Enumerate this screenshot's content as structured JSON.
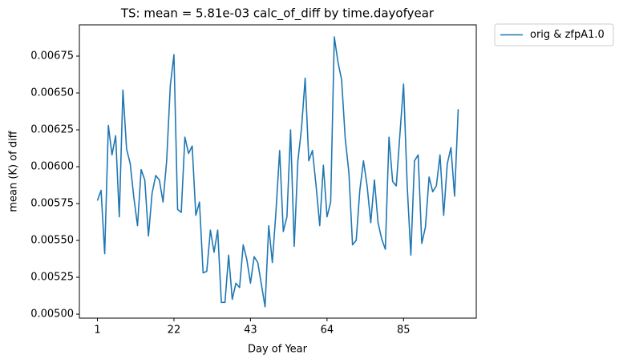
{
  "chart_data": {
    "type": "line",
    "title": "TS: mean =  5.81e-03 calc_of_diff by time.dayofyear",
    "x_label": "Day of Year",
    "y_label": "mean (K) of diff",
    "x": [
      1,
      2,
      3,
      4,
      5,
      6,
      7,
      8,
      9,
      10,
      11,
      12,
      13,
      14,
      15,
      16,
      17,
      18,
      19,
      20,
      21,
      22,
      23,
      24,
      25,
      26,
      27,
      28,
      29,
      30,
      31,
      32,
      33,
      34,
      35,
      36,
      37,
      38,
      39,
      40,
      41,
      42,
      43,
      44,
      45,
      46,
      47,
      48,
      49,
      50,
      51,
      52,
      53,
      54,
      55,
      56,
      57,
      58,
      59,
      60,
      61,
      62,
      63,
      64,
      65,
      66,
      67,
      68,
      69,
      70,
      71,
      72,
      73,
      74,
      75,
      76,
      77,
      78,
      79,
      80,
      81,
      82,
      83,
      84,
      85,
      86,
      87,
      88,
      89,
      90,
      91,
      92,
      93,
      94,
      95,
      96,
      97,
      98,
      99,
      100
    ],
    "series": [
      {
        "name": "orig & zfpA1.0",
        "color": "#1f77b4",
        "values": [
          0.00577,
          0.00584,
          0.00541,
          0.00628,
          0.00608,
          0.00621,
          0.00566,
          0.00652,
          0.00612,
          0.00602,
          0.00579,
          0.0056,
          0.00598,
          0.00591,
          0.00553,
          0.00582,
          0.00594,
          0.00591,
          0.00576,
          0.00604,
          0.00655,
          0.00676,
          0.00571,
          0.00569,
          0.0062,
          0.00609,
          0.00614,
          0.00567,
          0.00576,
          0.00528,
          0.00529,
          0.00557,
          0.00542,
          0.00557,
          0.00508,
          0.00508,
          0.0054,
          0.0051,
          0.00521,
          0.00518,
          0.00547,
          0.00537,
          0.00521,
          0.00539,
          0.00535,
          0.0052,
          0.00505,
          0.0056,
          0.00535,
          0.0057,
          0.00611,
          0.00556,
          0.00566,
          0.00625,
          0.00546,
          0.00604,
          0.00626,
          0.0066,
          0.00604,
          0.00611,
          0.00587,
          0.0056,
          0.00601,
          0.00566,
          0.00576,
          0.00688,
          0.00671,
          0.00659,
          0.00619,
          0.00596,
          0.00547,
          0.0055,
          0.00584,
          0.00604,
          0.00587,
          0.00562,
          0.00591,
          0.00562,
          0.00551,
          0.00544,
          0.0062,
          0.0059,
          0.00587,
          0.00622,
          0.00656,
          0.00587,
          0.0054,
          0.00604,
          0.00608,
          0.00548,
          0.00559,
          0.00593,
          0.00583,
          0.00587,
          0.00608,
          0.00567,
          0.00602,
          0.00613,
          0.0058,
          0.00639
        ]
      }
    ],
    "xlim": [
      -3.95,
      104.95
    ],
    "xticks": [
      1,
      22,
      43,
      64,
      85
    ],
    "ylim": [
      0.004973,
      0.006962
    ],
    "yticks": [
      {
        "value": 0.005,
        "label": "0.00500"
      },
      0.00525,
      {
        "value": 0.0055,
        "label": "0.00550"
      },
      0.00575,
      {
        "value": 0.006,
        "label": "0.00600"
      },
      0.00625,
      {
        "value": 0.0065,
        "label": "0.00650"
      },
      0.00675
    ],
    "legend": "outside-upper-right"
  }
}
